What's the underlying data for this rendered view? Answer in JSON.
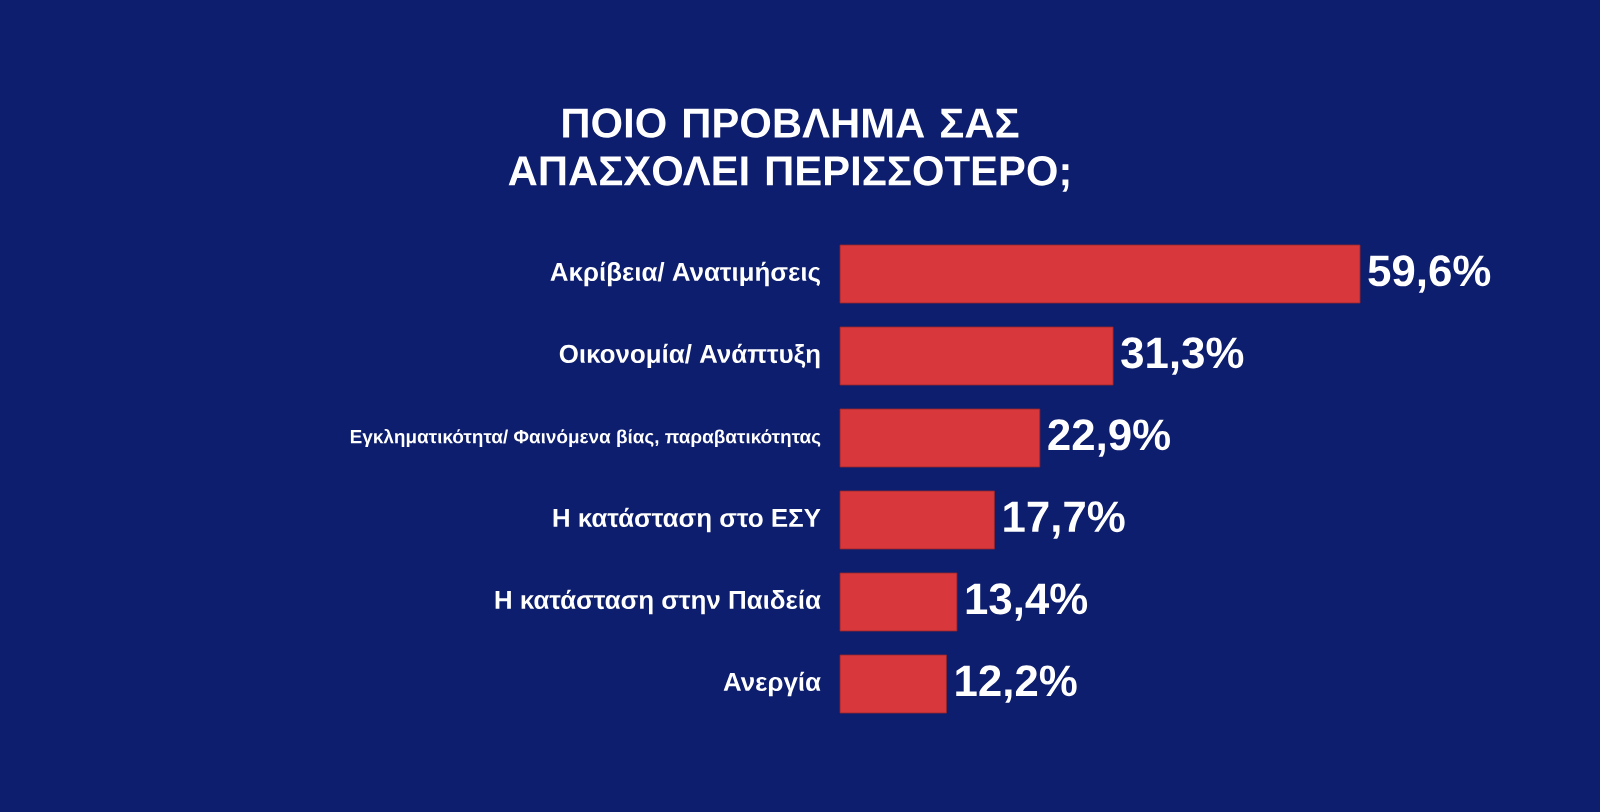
{
  "chart_data": {
    "type": "bar",
    "orientation": "horizontal",
    "title": "ΠΟΙΟ ΠΡΟΒΛΗΜΑ ΣΑΣ ΑΠΑΣΧΟΛΕΙ ΠΕΡΙΣΣΟΤΕΡΟ;",
    "categories": [
      "Ακρίβεια/ Ανατιμήσεις",
      "Οικονομία/ Ανάπτυξη",
      "Εγκληματικότητα/ Φαινόμενα βίας, παραβατικότητας",
      "Η κατάσταση στο ΕΣΥ",
      "Η κατάσταση στην Παιδεία",
      "Ανεργία"
    ],
    "values": [
      59.6,
      31.3,
      22.9,
      17.7,
      13.4,
      12.2
    ],
    "value_labels": [
      "59,6%",
      "31,3%",
      "22,9%",
      "17,7%",
      "13,4%",
      "12,2%"
    ],
    "color": "#d8373b"
  }
}
